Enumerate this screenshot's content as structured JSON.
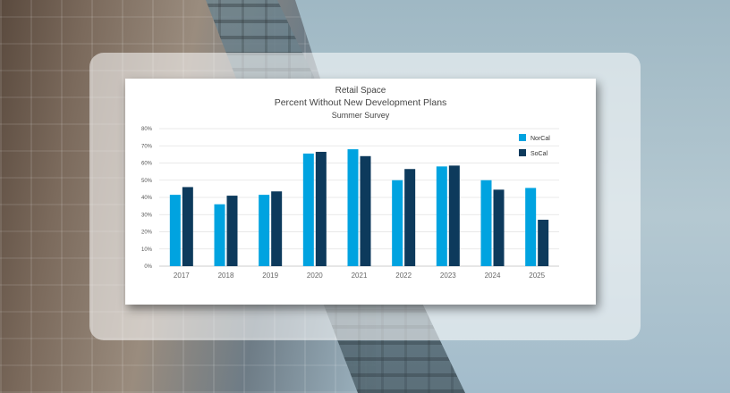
{
  "chart_data": {
    "type": "bar",
    "title": "Retail Space",
    "subtitle": "Percent Without New Development Plans",
    "subtitle2": "Summer Survey",
    "categories": [
      "2017",
      "2018",
      "2019",
      "2020",
      "2021",
      "2022",
      "2023",
      "2024",
      "2025"
    ],
    "series": [
      {
        "name": "NorCal",
        "color": "#00a3e0",
        "values": [
          41.5,
          36,
          41.5,
          65.5,
          68,
          50,
          58,
          50,
          45.5
        ]
      },
      {
        "name": "SoCal",
        "color": "#0d3a5c",
        "values": [
          46,
          41,
          43.5,
          66.5,
          64,
          56.5,
          58.5,
          44.5,
          27
        ]
      }
    ],
    "ylim": [
      0,
      80
    ],
    "yticks": [
      "0%",
      "10%",
      "20%",
      "30%",
      "40%",
      "50%",
      "60%",
      "70%",
      "80%"
    ],
    "grid": true,
    "legend_position": "top-right"
  }
}
